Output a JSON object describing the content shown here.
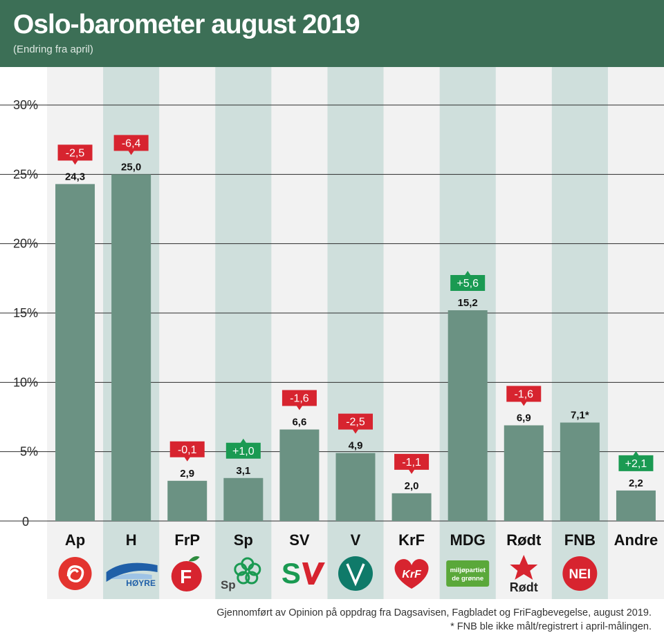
{
  "header": {
    "title": "Oslo-barometer august 2019",
    "subtitle": "(Endring fra april)"
  },
  "colors": {
    "header_bg": "#3c6f56",
    "bar": "#6b9283",
    "negative_change": "#d7242f",
    "positive_change": "#1a9a52",
    "stripe_light": "#f2f2f2",
    "stripe_dark": "#cfdfdc"
  },
  "chart_data": {
    "type": "bar",
    "title": "Oslo-barometer august 2019",
    "subtitle": "(Endring fra april)",
    "ylim": [
      0,
      30
    ],
    "y_ticks": [
      "0",
      "5%",
      "10%",
      "15%",
      "20%",
      "25%",
      "30%"
    ],
    "y_tick_values": [
      0,
      5,
      10,
      15,
      20,
      25,
      30
    ],
    "grid": true,
    "categories": [
      "Ap",
      "H",
      "FrP",
      "Sp",
      "SV",
      "V",
      "KrF",
      "MDG",
      "Rødt",
      "FNB",
      "Andre"
    ],
    "values": [
      24.3,
      25.0,
      2.9,
      3.1,
      6.6,
      4.9,
      2.0,
      15.2,
      6.9,
      7.1,
      2.2
    ],
    "value_labels": [
      "24,3",
      "25,0",
      "2,9",
      "3,1",
      "6,6",
      "4,9",
      "2,0",
      "15,2",
      "6,9",
      "7,1*",
      "2,2"
    ],
    "changes": [
      -2.5,
      -6.4,
      -0.1,
      1.0,
      -1.6,
      -2.5,
      -1.1,
      5.6,
      -1.6,
      null,
      2.1
    ],
    "change_labels": [
      "-2,5",
      "-6,4",
      "-0,1",
      "+1,0",
      "-1,6",
      "-2,5",
      "-1,1",
      "+5,6",
      "-1,6",
      "",
      "+2,1"
    ]
  },
  "logos": [
    {
      "icon": "ap-rose-logo",
      "color": "#e3342f",
      "text": ""
    },
    {
      "icon": "hoyre-wave-logo",
      "color": "#1f5fa8",
      "text": "HØYRE"
    },
    {
      "icon": "frp-apple-logo",
      "color": "#d7242f",
      "text": "F"
    },
    {
      "icon": "sp-clover-logo",
      "color": "#1a9a52",
      "text": "Sp"
    },
    {
      "icon": "sv-logo",
      "color": "#1a9a52",
      "text": "SV"
    },
    {
      "icon": "venstre-logo",
      "color": "#0f7a69",
      "text": "V"
    },
    {
      "icon": "krf-heart-logo",
      "color": "#d7242f",
      "text": "KrF"
    },
    {
      "icon": "mdg-logo",
      "color": "#5aa83a",
      "text": "miljøpartiet de grønne"
    },
    {
      "icon": "rodt-star-logo",
      "color": "#d7242f",
      "text": "Rødt"
    },
    {
      "icon": "fnb-nei-logo",
      "color": "#d7242f",
      "text": "NEI"
    },
    {
      "icon": "",
      "color": "",
      "text": ""
    }
  ],
  "footer": {
    "line1": "Gjennomført av Opinion på oppdrag fra Dagsavisen, Fagbladet og FriFagbevegelse, august 2019.",
    "line2": "* FNB ble ikke målt/registrert i april-målingen."
  }
}
